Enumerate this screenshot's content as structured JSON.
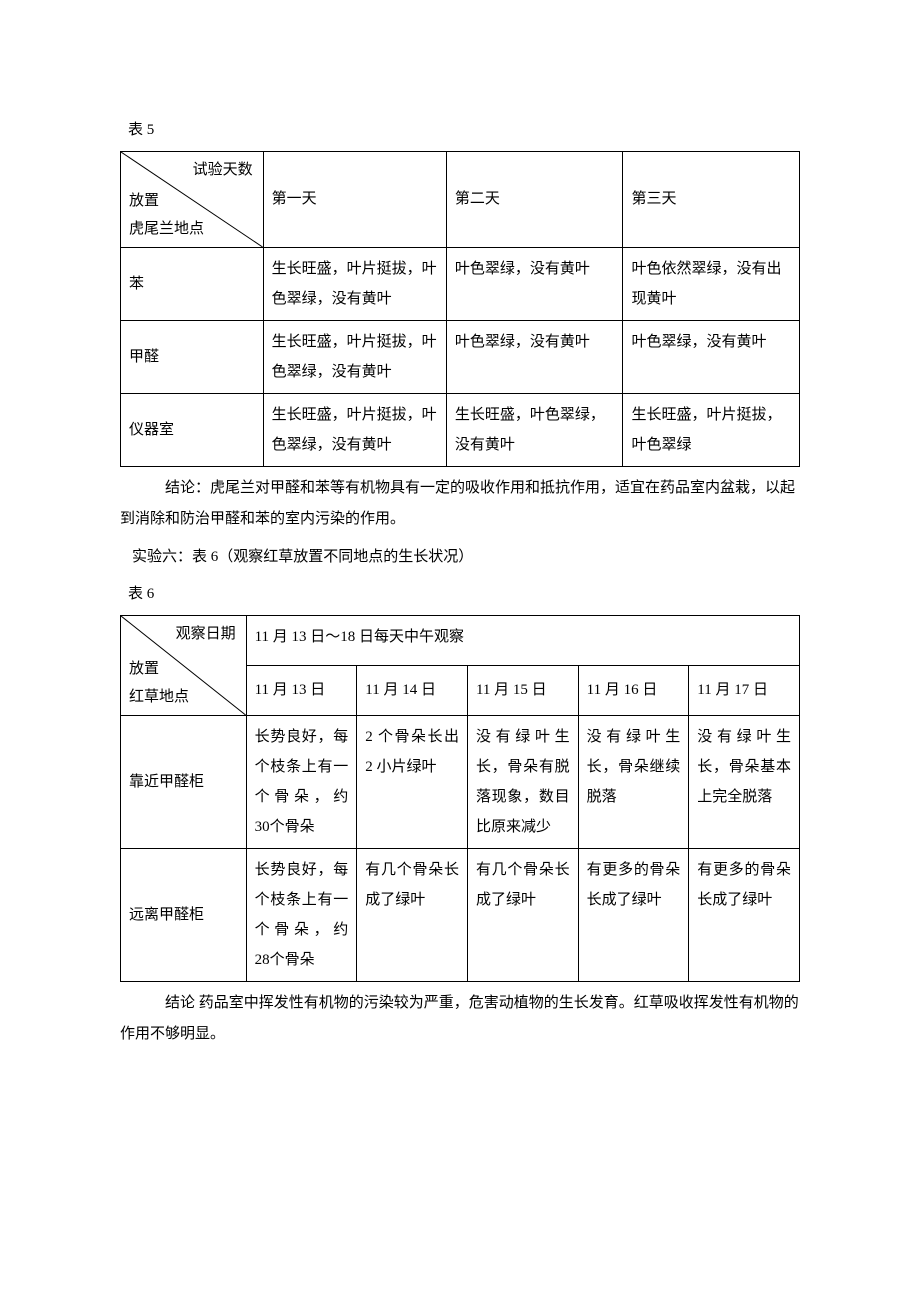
{
  "table5": {
    "caption": "表 5",
    "diag_top": "试验天数",
    "diag_bottom": "放置\n虎尾兰地点",
    "headers": [
      "第一天",
      "第二天",
      "第三天"
    ],
    "rows": [
      {
        "label": "苯",
        "cells": [
          "生长旺盛，叶片挺拔，叶色翠绿，没有黄叶",
          "叶色翠绿，没有黄叶",
          "叶色依然翠绿，没有出现黄叶"
        ]
      },
      {
        "label": "甲醛",
        "cells": [
          "生长旺盛，叶片挺拔，叶色翠绿，没有黄叶",
          "叶色翠绿，没有黄叶",
          "叶色翠绿，没有黄叶"
        ]
      },
      {
        "label": "仪器室",
        "cells": [
          "生长旺盛，叶片挺拔，叶色翠绿，没有黄叶",
          "生长旺盛，叶色翠绿，没有黄叶",
          "生长旺盛，叶片挺拔，叶色翠绿"
        ]
      }
    ]
  },
  "conclusion5": "结论：虎尾兰对甲醛和苯等有机物具有一定的吸收作用和抵抗作用，适宜在药品室内盆栽，以起到消除和防治甲醛和苯的室内污染的作用。",
  "experiment6_title": "实验六：表 6（观察红草放置不同地点的生长状况）",
  "table6": {
    "caption": "表 6",
    "diag_top": "观察日期",
    "diag_bottom": "放置\n红草地点",
    "header_span": "11 月 13 日～18 日每天中午观察",
    "headers": [
      "11 月 13 日",
      "11 月 14 日",
      "11 月 15 日",
      "11 月 16 日",
      "11 月 17 日"
    ],
    "rows": [
      {
        "label": "靠近甲醛柜",
        "cells": [
          "长势良好，每个枝条上有一个骨朵，约 30个骨朵",
          "2 个骨朵长出 2 小片绿叶",
          "没有绿叶生长，骨朵有脱落现象，数目比原来减少",
          "没有绿叶生长，骨朵继续脱落",
          "没有绿叶生长，骨朵基本上完全脱落"
        ]
      },
      {
        "label": "远离甲醛柜",
        "cells": [
          "长势良好，每个枝条上有一个骨朵，约 28个骨朵",
          "有几个骨朵长成了绿叶",
          "有几个骨朵长成了绿叶",
          "有更多的骨朵长成了绿叶",
          "有更多的骨朵长成了绿叶"
        ]
      }
    ]
  },
  "conclusion6": "结论 药品室中挥发性有机物的污染较为严重，危害动植物的生长发育。红草吸收挥发性有机物的作用不够明显。"
}
